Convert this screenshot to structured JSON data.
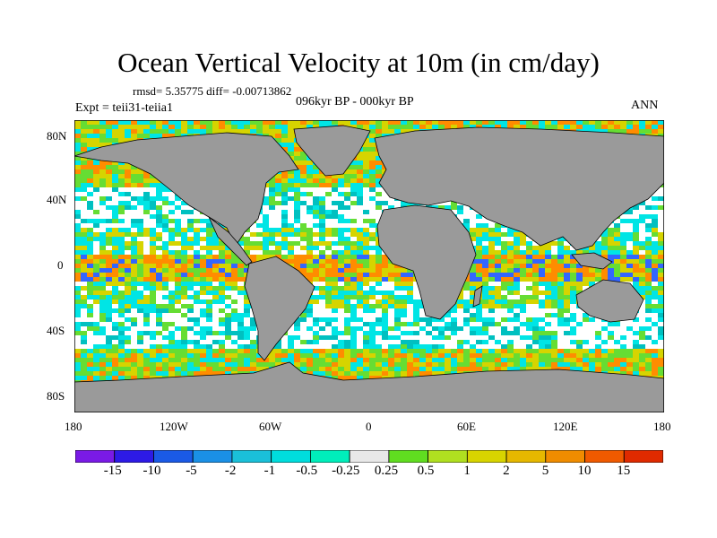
{
  "title": "Ocean Vertical Velocity at 10m (in cm/day)",
  "stats": "rmsd= 5.35775 diff= -0.00713862",
  "period": "096kyr BP - 000kyr BP",
  "experiment": "Expt = teii31-teiia1",
  "season": "ANN",
  "map": {
    "land_color": "#9a9a9a",
    "ocean_noise_colors": [
      "#ffffff",
      "#00e5e5",
      "#00c0c0",
      "#66dd33",
      "#d6d400",
      "#ff8c00",
      "#3366ff"
    ]
  },
  "axes": {
    "y_ticks": [
      "80N",
      "40N",
      "0",
      "40S",
      "80S"
    ],
    "x_ticks": [
      "180",
      "120W",
      "60W",
      "0",
      "60E",
      "120E",
      "180"
    ]
  },
  "colorbar": {
    "colors": [
      "#7a1ae6",
      "#2d1ae6",
      "#1a5ae6",
      "#1a90e6",
      "#1ac0d9",
      "#00dddd",
      "#00eebb",
      "#e8e8e8",
      "#60dd20",
      "#b0e020",
      "#d8d400",
      "#e6b800",
      "#f08c00",
      "#f05a00",
      "#e02a00"
    ],
    "labels": [
      "-15",
      "-10",
      "-5",
      "-2",
      "-1",
      "-0.5",
      "-0.25",
      "0.25",
      "0.5",
      "1",
      "2",
      "5",
      "10",
      "15"
    ]
  }
}
